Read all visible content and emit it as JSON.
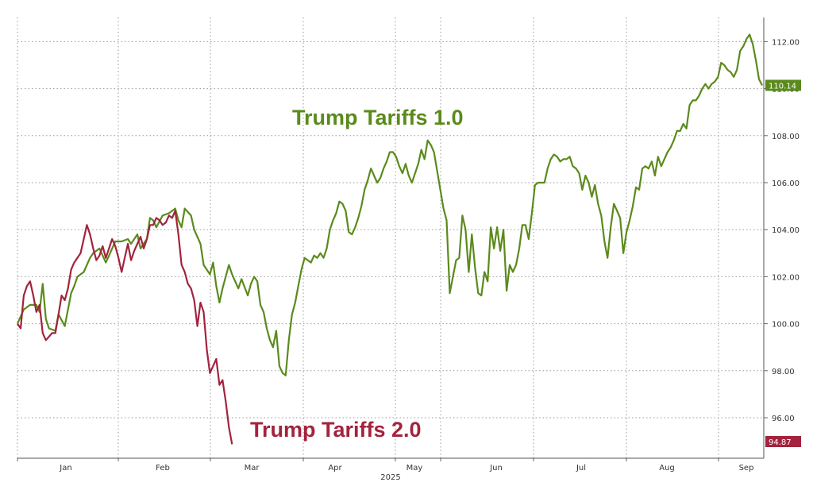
{
  "chart_data": {
    "type": "line",
    "title": "",
    "xlabel": "2025",
    "ylabel": "",
    "ylim": [
      94.2,
      112.8
    ],
    "xlim": [
      0,
      250
    ],
    "y_ticks": [
      "96.00",
      "98.00",
      "100.00",
      "102.00",
      "104.00",
      "106.00",
      "108.00",
      "110.00",
      "112.00"
    ],
    "month_labels": [
      {
        "label": "Jan",
        "x": 10
      },
      {
        "label": "Feb",
        "x": 31
      },
      {
        "label": "Mar",
        "x": 52
      },
      {
        "label": "Apr",
        "x": 73
      },
      {
        "label": "May",
        "x": 94
      },
      {
        "label": "Jun",
        "x": 115
      },
      {
        "label": "Jul",
        "x": 136
      },
      {
        "label": "Aug",
        "x": 157
      },
      {
        "label": "Sep",
        "x": 178
      }
    ],
    "grid": true,
    "series": [
      {
        "name": "Trump Tariffs 1.0",
        "color": "#5b8a1c",
        "last_value_label": "110.14",
        "points": [
          [
            0,
            100.0
          ],
          [
            2,
            100.6
          ],
          [
            4,
            100.8
          ],
          [
            6,
            100.8
          ],
          [
            7,
            100.5
          ],
          [
            8,
            101.7
          ],
          [
            9,
            100.2
          ],
          [
            10,
            99.8
          ],
          [
            12,
            99.7
          ],
          [
            13,
            100.4
          ],
          [
            15,
            99.9
          ],
          [
            17,
            101.3
          ],
          [
            18,
            101.6
          ],
          [
            19,
            102.0
          ],
          [
            21,
            102.2
          ],
          [
            23,
            102.8
          ],
          [
            24,
            103.0
          ],
          [
            26,
            103.2
          ],
          [
            28,
            102.6
          ],
          [
            29,
            102.9
          ],
          [
            31,
            103.5
          ],
          [
            33,
            103.5
          ],
          [
            35,
            103.6
          ],
          [
            36,
            103.4
          ],
          [
            38,
            103.8
          ],
          [
            39,
            103.2
          ],
          [
            41,
            103.6
          ],
          [
            42,
            104.5
          ],
          [
            43,
            104.4
          ],
          [
            44,
            104.1
          ],
          [
            46,
            104.6
          ],
          [
            48,
            104.7
          ],
          [
            50,
            104.9
          ],
          [
            51,
            104.4
          ],
          [
            52,
            104.1
          ],
          [
            53,
            104.9
          ],
          [
            55,
            104.6
          ],
          [
            56,
            104.0
          ],
          [
            58,
            103.4
          ],
          [
            59,
            102.5
          ],
          [
            61,
            102.1
          ],
          [
            62,
            102.6
          ],
          [
            63,
            101.6
          ],
          [
            64,
            100.9
          ],
          [
            65,
            101.5
          ],
          [
            66,
            102.0
          ],
          [
            67,
            102.5
          ],
          [
            68,
            102.1
          ],
          [
            70,
            101.5
          ],
          [
            71,
            101.9
          ],
          [
            73,
            101.2
          ],
          [
            74,
            101.7
          ],
          [
            75,
            102.0
          ],
          [
            76,
            101.8
          ],
          [
            77,
            100.8
          ],
          [
            78,
            100.5
          ],
          [
            79,
            99.8
          ],
          [
            80,
            99.3
          ],
          [
            81,
            99.0
          ],
          [
            82,
            99.7
          ],
          [
            83,
            98.2
          ],
          [
            84,
            97.9
          ],
          [
            85,
            97.8
          ],
          [
            86,
            99.3
          ],
          [
            87,
            100.4
          ],
          [
            88,
            100.9
          ],
          [
            89,
            101.6
          ],
          [
            90,
            102.3
          ],
          [
            91,
            102.8
          ],
          [
            92,
            102.7
          ],
          [
            93,
            102.6
          ],
          [
            94,
            102.9
          ],
          [
            95,
            102.8
          ],
          [
            96,
            103.0
          ],
          [
            97,
            102.8
          ],
          [
            98,
            103.2
          ],
          [
            99,
            104.0
          ],
          [
            100,
            104.4
          ],
          [
            101,
            104.7
          ],
          [
            102,
            105.2
          ],
          [
            103,
            105.1
          ],
          [
            104,
            104.8
          ],
          [
            105,
            103.9
          ],
          [
            106,
            103.8
          ],
          [
            107,
            104.1
          ],
          [
            108,
            104.5
          ],
          [
            109,
            105.0
          ],
          [
            110,
            105.7
          ],
          [
            111,
            106.1
          ],
          [
            112,
            106.6
          ],
          [
            113,
            106.3
          ],
          [
            114,
            106.0
          ],
          [
            115,
            106.2
          ],
          [
            116,
            106.6
          ],
          [
            117,
            106.9
          ],
          [
            118,
            107.3
          ],
          [
            119,
            107.3
          ],
          [
            120,
            107.1
          ],
          [
            121,
            106.7
          ],
          [
            122,
            106.4
          ],
          [
            123,
            106.8
          ],
          [
            124,
            106.3
          ],
          [
            125,
            106.0
          ],
          [
            126,
            106.4
          ],
          [
            127,
            106.8
          ],
          [
            128,
            107.4
          ],
          [
            129,
            107.0
          ],
          [
            130,
            107.8
          ],
          [
            131,
            107.6
          ],
          [
            132,
            107.3
          ],
          [
            133,
            106.5
          ],
          [
            134,
            105.7
          ],
          [
            135,
            104.9
          ],
          [
            136,
            104.4
          ],
          [
            137,
            101.3
          ],
          [
            138,
            102.0
          ],
          [
            139,
            102.7
          ],
          [
            140,
            102.8
          ],
          [
            141,
            104.6
          ],
          [
            142,
            104.0
          ],
          [
            143,
            102.2
          ],
          [
            144,
            103.8
          ],
          [
            145,
            102.4
          ],
          [
            146,
            101.3
          ],
          [
            147,
            101.2
          ],
          [
            148,
            102.2
          ],
          [
            149,
            101.8
          ],
          [
            150,
            104.1
          ],
          [
            151,
            103.2
          ],
          [
            152,
            104.1
          ],
          [
            153,
            103.1
          ],
          [
            154,
            104.0
          ],
          [
            155,
            101.4
          ],
          [
            156,
            102.5
          ],
          [
            157,
            102.2
          ],
          [
            158,
            102.5
          ],
          [
            159,
            103.2
          ],
          [
            160,
            104.2
          ],
          [
            161,
            104.2
          ],
          [
            162,
            103.6
          ],
          [
            163,
            104.7
          ],
          [
            164,
            105.9
          ],
          [
            165,
            106.0
          ],
          [
            166,
            106.0
          ],
          [
            167,
            106.0
          ],
          [
            168,
            106.6
          ],
          [
            169,
            107.0
          ],
          [
            170,
            107.2
          ],
          [
            171,
            107.1
          ],
          [
            172,
            106.9
          ],
          [
            173,
            107.0
          ],
          [
            174,
            107.0
          ],
          [
            175,
            107.1
          ],
          [
            176,
            106.7
          ],
          [
            177,
            106.6
          ],
          [
            178,
            106.4
          ],
          [
            179,
            105.7
          ],
          [
            180,
            106.3
          ],
          [
            181,
            106.0
          ],
          [
            182,
            105.4
          ],
          [
            183,
            105.9
          ],
          [
            184,
            105.1
          ],
          [
            185,
            104.6
          ],
          [
            186,
            103.5
          ],
          [
            187,
            102.8
          ],
          [
            188,
            104.1
          ],
          [
            189,
            105.1
          ],
          [
            190,
            104.8
          ],
          [
            191,
            104.5
          ],
          [
            192,
            103.0
          ],
          [
            193,
            103.9
          ],
          [
            194,
            104.4
          ],
          [
            195,
            105.0
          ],
          [
            196,
            105.8
          ],
          [
            197,
            105.7
          ],
          [
            198,
            106.6
          ],
          [
            199,
            106.7
          ],
          [
            200,
            106.6
          ],
          [
            201,
            106.9
          ],
          [
            202,
            106.3
          ],
          [
            203,
            107.1
          ],
          [
            204,
            106.7
          ],
          [
            205,
            107.0
          ],
          [
            206,
            107.3
          ],
          [
            207,
            107.5
          ],
          [
            208,
            107.8
          ],
          [
            209,
            108.2
          ],
          [
            210,
            108.2
          ],
          [
            211,
            108.5
          ],
          [
            212,
            108.3
          ],
          [
            213,
            109.3
          ],
          [
            214,
            109.5
          ],
          [
            215,
            109.5
          ],
          [
            216,
            109.7
          ],
          [
            217,
            110.0
          ],
          [
            218,
            110.2
          ],
          [
            219,
            110.0
          ],
          [
            220,
            110.2
          ],
          [
            221,
            110.3
          ],
          [
            222,
            110.5
          ],
          [
            223,
            111.1
          ],
          [
            224,
            111.0
          ],
          [
            225,
            110.8
          ],
          [
            226,
            110.7
          ],
          [
            227,
            110.5
          ],
          [
            228,
            110.8
          ],
          [
            229,
            111.6
          ],
          [
            230,
            111.8
          ],
          [
            231,
            112.1
          ],
          [
            232,
            112.3
          ],
          [
            233,
            111.9
          ],
          [
            234,
            111.2
          ],
          [
            235,
            110.4
          ],
          [
            236,
            110.14
          ]
        ]
      },
      {
        "name": "Trump Tariffs 2.0",
        "color": "#a3233d",
        "last_value_label": "94.87",
        "points": [
          [
            0,
            100.0
          ],
          [
            1,
            99.8
          ],
          [
            2,
            101.2
          ],
          [
            3,
            101.6
          ],
          [
            4,
            101.8
          ],
          [
            5,
            101.2
          ],
          [
            6,
            100.5
          ],
          [
            7,
            100.8
          ],
          [
            8,
            99.6
          ],
          [
            9,
            99.3
          ],
          [
            11,
            99.6
          ],
          [
            12,
            99.6
          ],
          [
            13,
            100.4
          ],
          [
            14,
            101.2
          ],
          [
            15,
            101.0
          ],
          [
            16,
            101.5
          ],
          [
            17,
            102.3
          ],
          [
            18,
            102.6
          ],
          [
            20,
            103.0
          ],
          [
            21,
            103.6
          ],
          [
            22,
            104.2
          ],
          [
            23,
            103.8
          ],
          [
            24,
            103.2
          ],
          [
            25,
            102.7
          ],
          [
            26,
            102.9
          ],
          [
            27,
            103.3
          ],
          [
            28,
            102.8
          ],
          [
            29,
            103.2
          ],
          [
            30,
            103.6
          ],
          [
            31,
            103.3
          ],
          [
            32,
            102.8
          ],
          [
            33,
            102.2
          ],
          [
            34,
            102.8
          ],
          [
            35,
            103.4
          ],
          [
            36,
            102.7
          ],
          [
            37,
            103.1
          ],
          [
            38,
            103.4
          ],
          [
            39,
            103.7
          ],
          [
            40,
            103.2
          ],
          [
            41,
            103.6
          ],
          [
            42,
            104.2
          ],
          [
            43,
            104.2
          ],
          [
            44,
            104.5
          ],
          [
            45,
            104.4
          ],
          [
            46,
            104.2
          ],
          [
            47,
            104.3
          ],
          [
            48,
            104.6
          ],
          [
            49,
            104.5
          ],
          [
            50,
            104.8
          ],
          [
            51,
            103.8
          ],
          [
            52,
            102.5
          ],
          [
            53,
            102.2
          ],
          [
            54,
            101.7
          ],
          [
            55,
            101.5
          ],
          [
            56,
            101.0
          ],
          [
            57,
            99.9
          ],
          [
            58,
            100.9
          ],
          [
            59,
            100.5
          ],
          [
            60,
            98.9
          ],
          [
            61,
            97.9
          ],
          [
            62,
            98.2
          ],
          [
            63,
            98.5
          ],
          [
            64,
            97.4
          ],
          [
            65,
            97.6
          ],
          [
            66,
            96.7
          ],
          [
            67,
            95.6
          ],
          [
            68,
            94.87
          ]
        ]
      }
    ],
    "annotations": [
      "Trump Tariffs 1.0",
      "Trump Tariffs 2.0"
    ]
  }
}
